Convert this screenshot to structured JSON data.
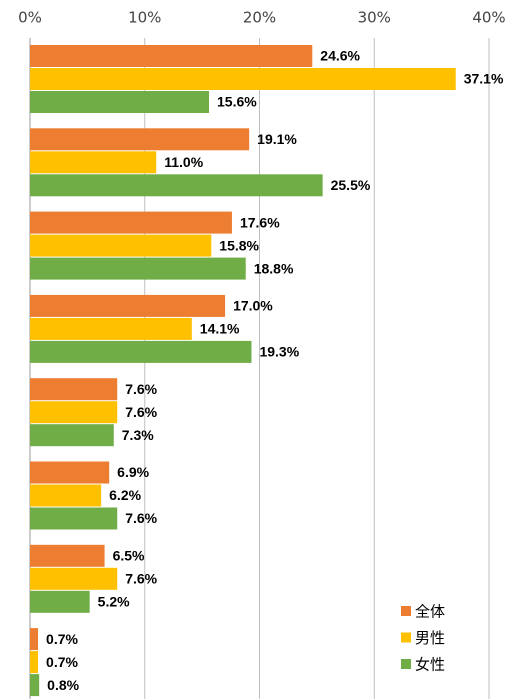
{
  "chart_data": {
    "type": "barh",
    "categories": [
      null,
      null,
      null,
      null,
      null,
      null,
      null,
      null
    ],
    "series": [
      {
        "name": "全体",
        "color": "#ED7D31",
        "values": [
          24.6,
          19.1,
          17.6,
          17.0,
          7.6,
          6.9,
          6.5,
          0.7
        ],
        "value_labels": [
          "24.6%",
          "19.1%",
          "17.6%",
          "17.0%",
          "7.6%",
          "6.9%",
          "6.5%",
          "0.7%"
        ]
      },
      {
        "name": "男性",
        "color": "#FFC000",
        "values": [
          37.1,
          11.0,
          15.8,
          14.1,
          7.6,
          6.2,
          7.6,
          0.7
        ],
        "value_labels": [
          "37.1%",
          "11.0%",
          "15.8%",
          "14.1%",
          "7.6%",
          "6.2%",
          "7.6%",
          "0.7%"
        ]
      },
      {
        "name": "女性",
        "color": "#70AD47",
        "values": [
          15.6,
          25.5,
          18.8,
          19.3,
          7.3,
          7.6,
          5.2,
          0.8
        ],
        "value_labels": [
          "15.6%",
          "25.5%",
          "18.8%",
          "19.3%",
          "7.3%",
          "7.6%",
          "5.2%",
          "0.8%"
        ]
      }
    ],
    "xlim": [
      0,
      40
    ],
    "xticks": [
      {
        "value": 0,
        "label": "0%"
      },
      {
        "value": 10,
        "label": "10%"
      },
      {
        "value": 20,
        "label": "20%"
      },
      {
        "value": 30,
        "label": "30%"
      },
      {
        "value": 40,
        "label": "40%"
      }
    ],
    "grid": true,
    "legend": "lower right"
  }
}
